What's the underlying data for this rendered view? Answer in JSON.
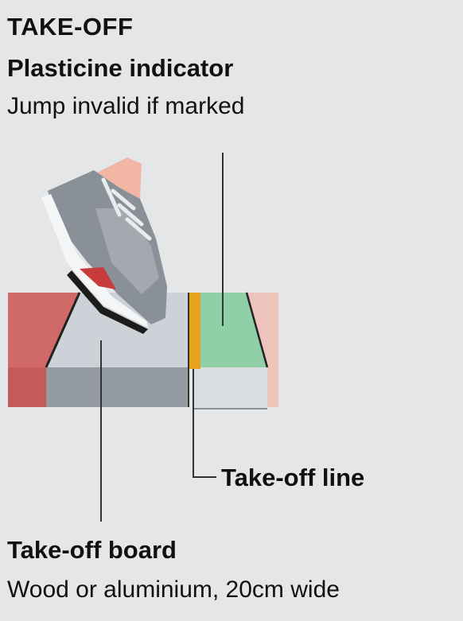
{
  "header": {
    "title": "TAKE-OFF"
  },
  "indicator": {
    "title": "Plasticine indicator",
    "description": "Jump invalid if marked"
  },
  "takeoff_line": {
    "label": "Take-off line"
  },
  "board": {
    "title": "Take-off board",
    "description": "Wood or aluminium, 20cm wide"
  },
  "colors": {
    "background": "#e5e6e8",
    "runway_red": "#d06b6a",
    "board_top": "#cdd2d8",
    "board_front": "#9da3aa",
    "plasticine": "#8fd0a7",
    "takeoff_line": "#e8a21e",
    "shoe_grey": "#8c9198",
    "shoe_red": "#c83b3b"
  }
}
